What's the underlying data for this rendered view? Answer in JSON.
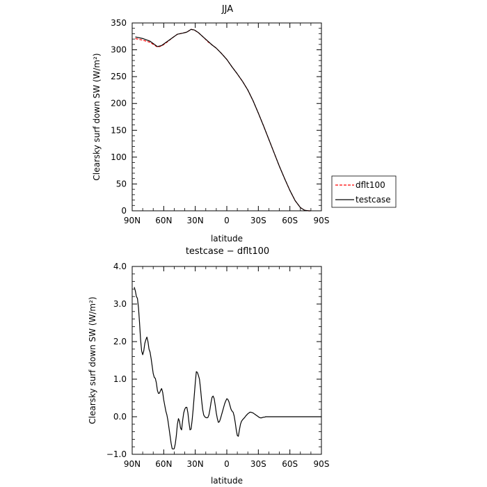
{
  "chart_data": [
    {
      "type": "line",
      "title": "JJA",
      "xlabel": "latitude",
      "ylabel": "Clearsky surf down SW (W/m²)",
      "xlim": [
        90,
        -90
      ],
      "ylim": [
        0,
        350
      ],
      "xticks": [
        90,
        60,
        30,
        0,
        -30,
        -60,
        -90
      ],
      "xtick_labels": [
        "90N",
        "60N",
        "30N",
        "0",
        "30S",
        "60S",
        "90S"
      ],
      "yticks": [
        0,
        50,
        100,
        150,
        200,
        250,
        300,
        350
      ],
      "ytick_labels": [
        "0",
        "50",
        "100",
        "150",
        "200",
        "250",
        "300",
        "350"
      ],
      "legend_position": "right",
      "series": [
        {
          "name": "dflt100",
          "color": "#ff0000",
          "dash": "dashed",
          "x": [
            87,
            80,
            73,
            66,
            62,
            57,
            52,
            47,
            42,
            38,
            34,
            31,
            27,
            22,
            18,
            14,
            10,
            5,
            0,
            -5,
            -10,
            -15,
            -20,
            -25,
            -30,
            -35,
            -40,
            -45,
            -50,
            -55,
            -60,
            -65,
            -70,
            -74,
            -78,
            -80
          ],
          "y": [
            321,
            318,
            314,
            305,
            307,
            314,
            322,
            329,
            331,
            333,
            338,
            337,
            332,
            323,
            315,
            309,
            303,
            293,
            282,
            268,
            255,
            241,
            225,
            205,
            182,
            158,
            133,
            108,
            83,
            60,
            38,
            19,
            6,
            1,
            0,
            0
          ]
        },
        {
          "name": "testcase",
          "color": "#000000",
          "dash": "solid",
          "x": [
            87,
            80,
            73,
            66,
            62,
            57,
            52,
            47,
            42,
            38,
            34,
            31,
            27,
            22,
            18,
            14,
            10,
            5,
            0,
            -5,
            -10,
            -15,
            -20,
            -25,
            -30,
            -35,
            -40,
            -45,
            -50,
            -55,
            -60,
            -65,
            -70,
            -74,
            -78,
            -80
          ],
          "y": [
            324,
            321,
            316,
            306,
            308,
            315,
            322,
            329,
            331,
            333,
            338,
            337,
            332,
            323,
            316,
            309,
            303,
            293,
            282,
            268,
            255,
            241,
            225,
            205,
            182,
            158,
            133,
            108,
            83,
            60,
            38,
            19,
            6,
            1,
            0,
            0
          ]
        }
      ]
    },
    {
      "type": "line",
      "title": "testcase − dflt100",
      "xlabel": "latitude",
      "ylabel": "Clearsky surf down SW (W/m²)",
      "xlim": [
        90,
        -90
      ],
      "ylim": [
        -1.0,
        4.0
      ],
      "xticks": [
        90,
        60,
        30,
        0,
        -30,
        -60,
        -90
      ],
      "xtick_labels": [
        "90N",
        "60N",
        "30N",
        "0",
        "30S",
        "60S",
        "90S"
      ],
      "yticks": [
        -1.0,
        0.0,
        1.0,
        2.0,
        3.0,
        4.0
      ],
      "ytick_labels": [
        "−1.0",
        "0.0",
        "1.0",
        "2.0",
        "3.0",
        "4.0"
      ],
      "series": [
        {
          "color": "#000000",
          "dash": "solid",
          "x": [
            88,
            87,
            86,
            85,
            84,
            83,
            82,
            81,
            80,
            79,
            78,
            77,
            76,
            75,
            74,
            73,
            72,
            71,
            70,
            69,
            68,
            67,
            66,
            65,
            64,
            63,
            62,
            61,
            60,
            59,
            58,
            57,
            56,
            55,
            54,
            53,
            52,
            51,
            50,
            49,
            48,
            47,
            46,
            45,
            44,
            43,
            42,
            41,
            40,
            39,
            38,
            37,
            36,
            35,
            34,
            33,
            32,
            31,
            30,
            29,
            28,
            27,
            26,
            25,
            24,
            23,
            22,
            21,
            20,
            19,
            18,
            17,
            16,
            15,
            14,
            13,
            12,
            11,
            10,
            9,
            8,
            7,
            6,
            5,
            4,
            3,
            2,
            1,
            0,
            -1,
            -2,
            -3,
            -4,
            -5,
            -6,
            -7,
            -8,
            -9,
            -10,
            -11,
            -12,
            -13,
            -14,
            -15,
            -16,
            -17,
            -18,
            -19,
            -20,
            -21,
            -22,
            -23,
            -24,
            -25,
            -26,
            -27,
            -28,
            -29,
            -30,
            -31,
            -32,
            -33,
            -34,
            -35,
            -36,
            -37,
            -38,
            -39,
            -40,
            -41,
            -42,
            -43,
            -44,
            -45,
            -46,
            -47,
            -48,
            -49,
            -50,
            -52,
            -55,
            -58,
            -60,
            -62,
            -64,
            -66,
            -68,
            -70,
            -72,
            -75,
            -78,
            -80,
            -85,
            -90
          ],
          "y": [
            3.45,
            3.35,
            3.2,
            3.15,
            2.9,
            2.5,
            2.05,
            1.75,
            1.65,
            1.75,
            1.95,
            2.05,
            2.12,
            2.0,
            1.8,
            1.72,
            1.55,
            1.35,
            1.15,
            1.05,
            1.02,
            0.9,
            0.7,
            0.62,
            0.63,
            0.7,
            0.75,
            0.65,
            0.45,
            0.3,
            0.15,
            0.05,
            -0.1,
            -0.3,
            -0.5,
            -0.7,
            -0.85,
            -0.86,
            -0.85,
            -0.72,
            -0.5,
            -0.2,
            -0.05,
            -0.12,
            -0.3,
            -0.35,
            -0.1,
            0.1,
            0.2,
            0.25,
            0.25,
            0.1,
            -0.15,
            -0.35,
            -0.33,
            -0.1,
            0.2,
            0.55,
            0.9,
            1.2,
            1.18,
            1.1,
            1.0,
            0.75,
            0.45,
            0.2,
            0.05,
            0.0,
            -0.02,
            -0.03,
            -0.02,
            0.05,
            0.2,
            0.38,
            0.52,
            0.55,
            0.48,
            0.3,
            0.1,
            -0.05,
            -0.15,
            -0.13,
            -0.05,
            0.05,
            0.15,
            0.25,
            0.35,
            0.42,
            0.48,
            0.46,
            0.4,
            0.3,
            0.2,
            0.15,
            0.12,
            0.02,
            -0.15,
            -0.35,
            -0.5,
            -0.52,
            -0.35,
            -0.2,
            -0.12,
            -0.08,
            -0.05,
            -0.02,
            0.02,
            0.05,
            0.08,
            0.1,
            0.12,
            0.12,
            0.11,
            0.1,
            0.08,
            0.06,
            0.04,
            0.02,
            0.0,
            -0.02,
            -0.03,
            -0.03,
            -0.02,
            -0.01,
            -0.01,
            0.0,
            0.0,
            0.0,
            0.0,
            0.0,
            0.0,
            0.0,
            0.0,
            0.0,
            0.0,
            0.0,
            0.0,
            0.0,
            0.0,
            0.0,
            0.0,
            0.0,
            0.0,
            0.0,
            0.0,
            0.0,
            0.0,
            0.0,
            0.0,
            0.0,
            0.0,
            0.0,
            0.0,
            0.0
          ]
        }
      ]
    }
  ]
}
